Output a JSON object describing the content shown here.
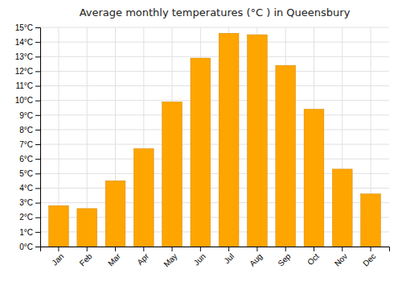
{
  "chart_data": {
    "type": "bar",
    "title": "Average monthly temperatures (°C ) in Queensbury",
    "categories": [
      "Jan",
      "Feb",
      "Mar",
      "Apr",
      "May",
      "Jun",
      "Jul",
      "Aug",
      "Sep",
      "Oct",
      "Nov",
      "Dec"
    ],
    "values": [
      2.8,
      2.6,
      4.5,
      6.7,
      9.9,
      12.9,
      14.6,
      14.5,
      12.4,
      9.4,
      5.3,
      3.6
    ],
    "color": "#FFA500",
    "ylim": [
      0,
      15
    ],
    "yticks": [
      {
        "value": 0,
        "label": "0°C"
      },
      {
        "value": 1,
        "label": "1°C"
      },
      {
        "value": 2,
        "label": "2°C"
      },
      {
        "value": 3,
        "label": "3°C"
      },
      {
        "value": 4,
        "label": "4°C"
      },
      {
        "value": 5,
        "label": "5°C"
      },
      {
        "value": 6,
        "label": "6°C"
      },
      {
        "value": 7,
        "label": "7°C"
      },
      {
        "value": 8,
        "label": "8°C"
      },
      {
        "value": 9,
        "label": "9°C"
      },
      {
        "value": 10,
        "label": "10°C"
      },
      {
        "value": 11,
        "label": "11°C"
      },
      {
        "value": 12,
        "label": "12°C"
      },
      {
        "value": 13,
        "label": "13°C"
      },
      {
        "value": 14,
        "label": "14°C"
      },
      {
        "value": 15,
        "label": "15°C"
      }
    ],
    "grid": true
  }
}
